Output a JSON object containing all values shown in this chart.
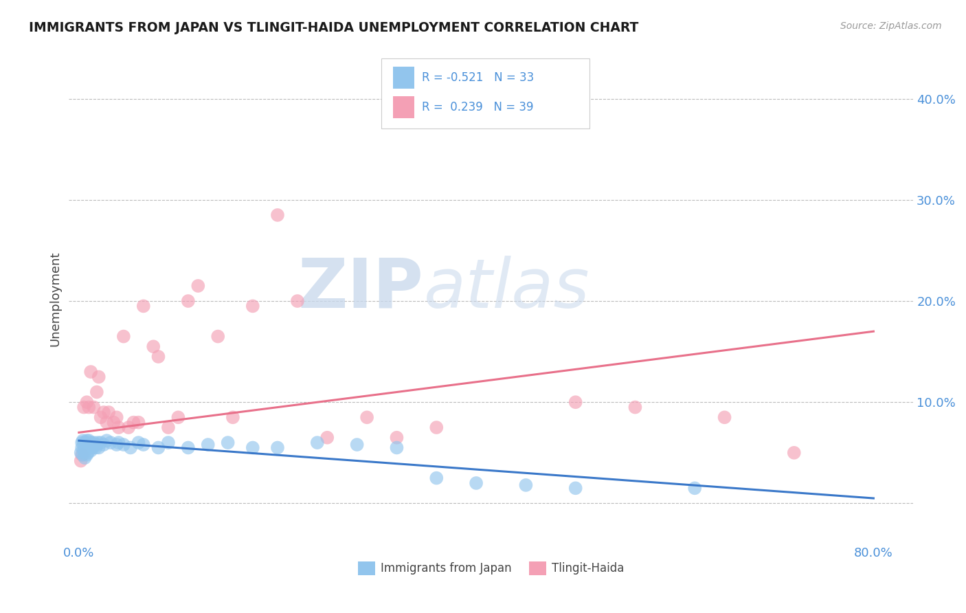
{
  "title": "IMMIGRANTS FROM JAPAN VS TLINGIT-HAIDA UNEMPLOYMENT CORRELATION CHART",
  "source": "Source: ZipAtlas.com",
  "ylabel": "Unemployment",
  "y_ticks": [
    0.0,
    0.1,
    0.2,
    0.3,
    0.4
  ],
  "y_tick_labels": [
    "",
    "10.0%",
    "20.0%",
    "30.0%",
    "40.0%"
  ],
  "xlim": [
    -0.01,
    0.84
  ],
  "ylim": [
    -0.04,
    0.445
  ],
  "blue_color": "#92C5ED",
  "pink_color": "#F4A0B5",
  "blue_line_color": "#3A78C9",
  "pink_line_color": "#E8708A",
  "watermark_zip": "ZIP",
  "watermark_atlas": "atlas",
  "blue_scatter_x": [
    0.002,
    0.003,
    0.003,
    0.004,
    0.004,
    0.005,
    0.005,
    0.006,
    0.006,
    0.007,
    0.007,
    0.008,
    0.008,
    0.009,
    0.009,
    0.01,
    0.01,
    0.011,
    0.012,
    0.012,
    0.013,
    0.014,
    0.015,
    0.016,
    0.017,
    0.018,
    0.019,
    0.02,
    0.022,
    0.025,
    0.028,
    0.032,
    0.038,
    0.04,
    0.045,
    0.052,
    0.06,
    0.065,
    0.08,
    0.09,
    0.11,
    0.13,
    0.15,
    0.175,
    0.2,
    0.24,
    0.28,
    0.32,
    0.36,
    0.4,
    0.45,
    0.5,
    0.62
  ],
  "blue_scatter_y": [
    0.05,
    0.055,
    0.06,
    0.048,
    0.062,
    0.052,
    0.058,
    0.045,
    0.06,
    0.055,
    0.058,
    0.048,
    0.062,
    0.055,
    0.05,
    0.058,
    0.062,
    0.055,
    0.06,
    0.052,
    0.058,
    0.055,
    0.06,
    0.058,
    0.055,
    0.058,
    0.06,
    0.055,
    0.06,
    0.058,
    0.062,
    0.06,
    0.058,
    0.06,
    0.058,
    0.055,
    0.06,
    0.058,
    0.055,
    0.06,
    0.055,
    0.058,
    0.06,
    0.055,
    0.055,
    0.06,
    0.058,
    0.055,
    0.025,
    0.02,
    0.018,
    0.015,
    0.015
  ],
  "pink_scatter_x": [
    0.002,
    0.003,
    0.005,
    0.008,
    0.01,
    0.012,
    0.015,
    0.018,
    0.02,
    0.022,
    0.025,
    0.028,
    0.03,
    0.035,
    0.038,
    0.04,
    0.045,
    0.05,
    0.055,
    0.06,
    0.065,
    0.075,
    0.08,
    0.09,
    0.1,
    0.11,
    0.12,
    0.14,
    0.155,
    0.175,
    0.2,
    0.22,
    0.25,
    0.29,
    0.32,
    0.36,
    0.5,
    0.56,
    0.65,
    0.72
  ],
  "pink_scatter_y": [
    0.042,
    0.048,
    0.095,
    0.1,
    0.095,
    0.13,
    0.095,
    0.11,
    0.125,
    0.085,
    0.09,
    0.08,
    0.09,
    0.08,
    0.085,
    0.075,
    0.165,
    0.075,
    0.08,
    0.08,
    0.195,
    0.155,
    0.145,
    0.075,
    0.085,
    0.2,
    0.215,
    0.165,
    0.085,
    0.195,
    0.285,
    0.2,
    0.065,
    0.085,
    0.065,
    0.075,
    0.1,
    0.095,
    0.085,
    0.05
  ],
  "blue_trend_x": [
    0.0,
    0.8
  ],
  "blue_trend_y": [
    0.062,
    0.005
  ],
  "pink_trend_x": [
    0.0,
    0.8
  ],
  "pink_trend_y": [
    0.07,
    0.17
  ],
  "background_color": "#FFFFFF",
  "grid_color": "#BBBBBB",
  "title_color": "#1a1a1a",
  "axis_label_color": "#4A90D9"
}
